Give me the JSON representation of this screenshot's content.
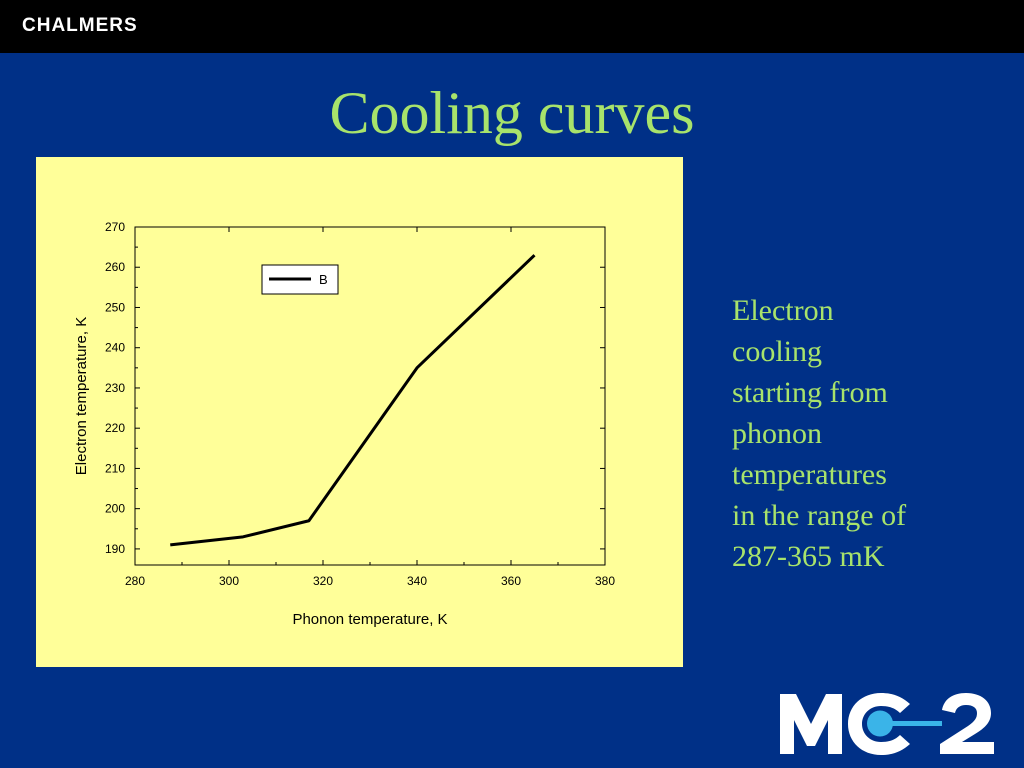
{
  "header": {
    "brand": "CHALMERS"
  },
  "slide": {
    "title": "Cooling curves"
  },
  "side_text": {
    "lines": [
      "Electron",
      "cooling",
      "starting from",
      "phonon",
      "temperatures",
      "in the range of",
      "287-365 mK"
    ]
  },
  "logo": {
    "text": "MC2"
  },
  "colors": {
    "background": "#003087",
    "title": "#a8e36b",
    "panel": "#ffff99",
    "line": "#000000"
  },
  "chart_data": {
    "type": "line",
    "xlabel": "Phonon temperature, K",
    "ylabel": "Electron temperature, K",
    "xlim": [
      280,
      380
    ],
    "ylim": [
      186,
      270
    ],
    "xticks": [
      280,
      300,
      320,
      340,
      360,
      380
    ],
    "yticks": [
      190,
      200,
      210,
      220,
      230,
      240,
      250,
      260,
      270
    ],
    "legend": {
      "position": "top-left",
      "entries": [
        "B"
      ]
    },
    "grid": false,
    "series": [
      {
        "name": "B",
        "x": [
          287.5,
          303,
          317,
          340,
          365
        ],
        "y": [
          191,
          193,
          197,
          235,
          263
        ]
      }
    ]
  }
}
